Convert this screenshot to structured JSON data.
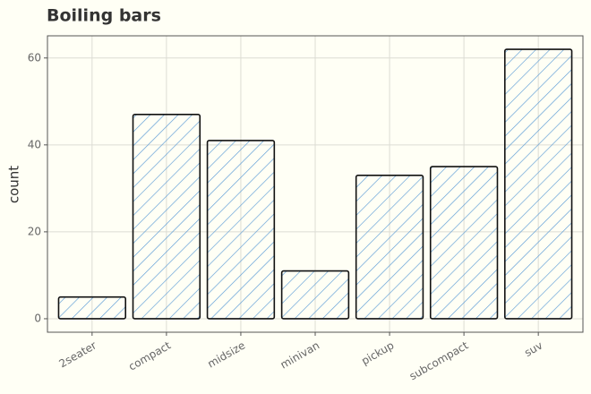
{
  "chart_data": {
    "type": "bar",
    "title": "Boiling bars",
    "y_label": "count",
    "categories": [
      "2seater",
      "compact",
      "midsize",
      "minivan",
      "pickup",
      "subcompact",
      "suv"
    ],
    "values": [
      5,
      47,
      41,
      11,
      33,
      35,
      62
    ],
    "color": "#5b9bd5",
    "ylim": [
      -3.1,
      65.1
    ],
    "yticks": [
      0,
      20,
      40,
      60
    ],
    "grid": true
  }
}
